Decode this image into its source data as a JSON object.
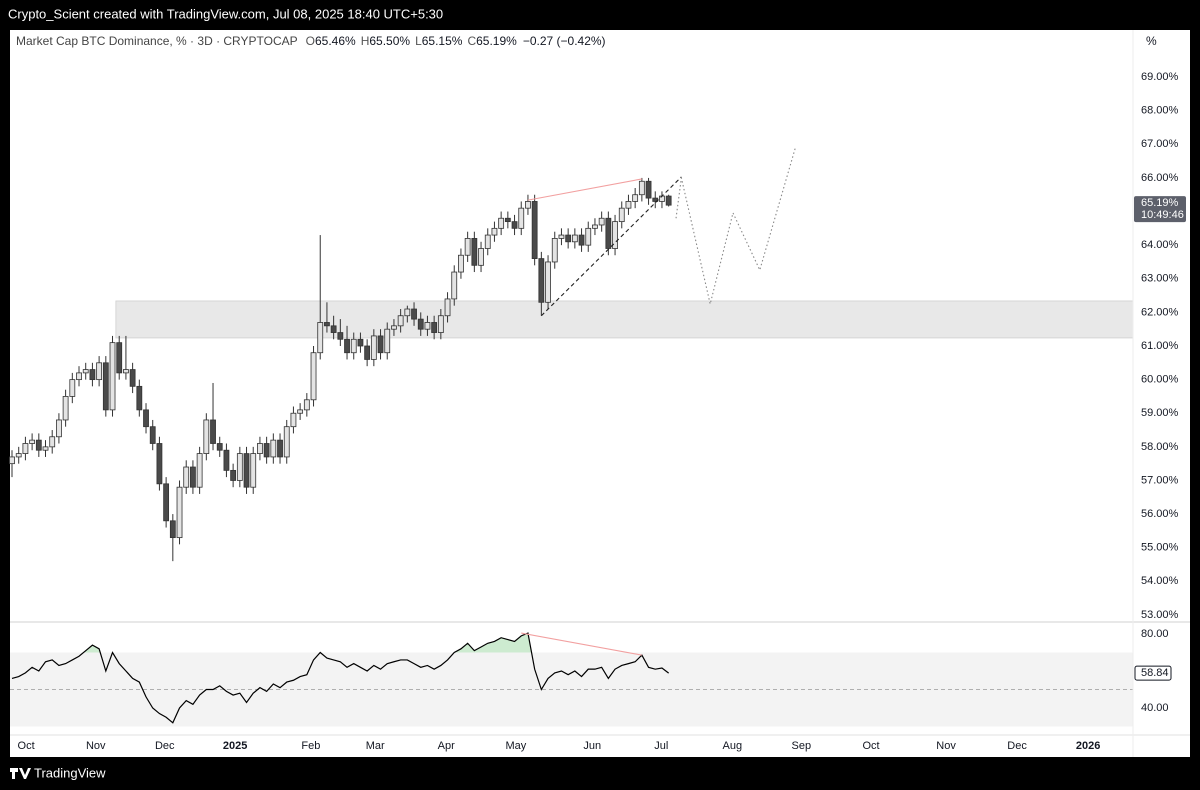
{
  "top_bar": {
    "text": "Crypto_Scient created with TradingView.com, Jul 08, 2025 18:40 UTC+5:30"
  },
  "footer": {
    "brand": "TradingView"
  },
  "chart_data": [
    {
      "type": "candlestick",
      "title": "Market Cap BTC Dominance, % · 3D · CRYPTOCAP",
      "ohlc_legend": [
        {
          "label": "O",
          "value": "65.46%"
        },
        {
          "label": "H",
          "value": "65.50%"
        },
        {
          "label": "L",
          "value": "65.15%"
        },
        {
          "label": "C",
          "value": "65.19%"
        }
      ],
      "change": "−0.27 (−0.42%)",
      "axis_unit": "%",
      "x": [
        0,
        1,
        2,
        3,
        4,
        5,
        6,
        7,
        8,
        9,
        10,
        11,
        12,
        13,
        14,
        15,
        16,
        17,
        18,
        19,
        20,
        21,
        22,
        23,
        24,
        25,
        26,
        27,
        28,
        29,
        30,
        31,
        32,
        33,
        34,
        35,
        36,
        37,
        38,
        39,
        40,
        41,
        42,
        43,
        44,
        45,
        46,
        47,
        48,
        49,
        50,
        51,
        52,
        53,
        54,
        55,
        56,
        57,
        58,
        59,
        60,
        61,
        62,
        63,
        64,
        65,
        66,
        67,
        68,
        69,
        70,
        71,
        72,
        73,
        74,
        75,
        76,
        77,
        78,
        79,
        80,
        81,
        82,
        83,
        84,
        85,
        86,
        87,
        88,
        89,
        90,
        91,
        92,
        93,
        94,
        95,
        96,
        97,
        98
      ],
      "open": [
        57.5,
        57.7,
        57.8,
        58.1,
        58.2,
        57.9,
        58.0,
        58.3,
        58.8,
        59.5,
        60.0,
        60.2,
        60.3,
        60.0,
        60.5,
        59.1,
        61.1,
        60.2,
        60.3,
        59.8,
        59.1,
        58.6,
        58.1,
        56.9,
        55.8,
        55.3,
        56.8,
        57.4,
        56.8,
        57.8,
        58.8,
        58.1,
        57.9,
        57.3,
        57.0,
        57.8,
        56.8,
        57.8,
        58.1,
        57.7,
        58.2,
        57.7,
        58.6,
        59.0,
        59.1,
        59.4,
        60.8,
        61.7,
        61.6,
        61.4,
        61.2,
        60.8,
        61.2,
        61.0,
        60.6,
        61.3,
        60.8,
        61.5,
        61.6,
        61.9,
        62.1,
        61.8,
        61.5,
        61.7,
        61.4,
        61.9,
        62.4,
        63.2,
        63.7,
        64.2,
        63.4,
        63.9,
        64.3,
        64.5,
        64.8,
        64.7,
        64.5,
        65.1,
        65.3,
        63.6,
        62.3,
        63.5,
        64.2,
        64.3,
        64.1,
        64.3,
        64.0,
        64.5,
        64.6,
        64.8,
        63.9,
        64.7,
        65.1,
        65.3,
        65.5,
        65.9,
        65.4,
        65.3,
        65.46
      ],
      "high": [
        57.9,
        58.0,
        58.3,
        58.4,
        58.4,
        58.2,
        58.5,
        59.0,
        59.7,
        60.2,
        60.4,
        60.5,
        60.5,
        60.7,
        60.7,
        61.3,
        61.3,
        61.3,
        60.5,
        60.0,
        59.3,
        58.8,
        58.3,
        57.1,
        56.0,
        57.0,
        57.6,
        57.6,
        58.0,
        59.0,
        59.9,
        58.3,
        58.1,
        57.5,
        58.0,
        58.0,
        58.0,
        58.3,
        58.3,
        58.4,
        58.4,
        58.8,
        59.2,
        59.3,
        59.6,
        61.0,
        64.3,
        62.3,
        61.9,
        61.8,
        61.6,
        61.4,
        61.4,
        61.2,
        61.5,
        61.5,
        61.7,
        61.8,
        62.1,
        62.2,
        62.3,
        62.0,
        61.9,
        61.9,
        62.1,
        62.6,
        63.4,
        63.9,
        64.4,
        64.4,
        64.1,
        64.5,
        64.7,
        65.0,
        65.0,
        64.9,
        65.3,
        65.5,
        65.5,
        63.8,
        63.7,
        64.4,
        64.5,
        64.5,
        64.5,
        64.5,
        64.7,
        64.8,
        65.0,
        65.0,
        64.9,
        65.3,
        65.5,
        65.7,
        66.0,
        66.0,
        65.6,
        65.6,
        65.5
      ],
      "low": [
        57.1,
        57.5,
        57.6,
        57.9,
        57.7,
        57.7,
        57.8,
        58.1,
        58.6,
        59.3,
        59.8,
        60.0,
        59.8,
        59.8,
        58.9,
        58.9,
        60.0,
        60.0,
        59.6,
        58.9,
        58.4,
        57.9,
        56.7,
        55.6,
        54.6,
        55.1,
        56.6,
        56.6,
        56.6,
        57.6,
        57.9,
        57.7,
        57.1,
        56.8,
        56.8,
        56.6,
        56.6,
        57.6,
        57.5,
        57.5,
        57.5,
        57.5,
        58.4,
        58.8,
        58.9,
        59.2,
        60.6,
        61.4,
        61.2,
        61.0,
        60.6,
        60.6,
        60.8,
        60.4,
        60.4,
        60.6,
        60.6,
        61.3,
        61.4,
        61.7,
        61.6,
        61.3,
        61.3,
        61.2,
        61.2,
        61.7,
        62.2,
        63.0,
        63.5,
        63.2,
        63.2,
        63.7,
        64.1,
        64.3,
        64.5,
        64.3,
        64.3,
        64.9,
        63.4,
        61.9,
        62.1,
        63.3,
        64.0,
        63.9,
        63.9,
        63.8,
        63.8,
        64.3,
        64.4,
        63.7,
        63.7,
        64.5,
        64.9,
        65.1,
        65.3,
        65.2,
        65.1,
        65.1,
        65.15
      ],
      "close": [
        57.7,
        57.8,
        58.1,
        58.2,
        57.9,
        58.0,
        58.3,
        58.8,
        59.5,
        60.0,
        60.2,
        60.3,
        60.0,
        60.5,
        59.1,
        61.1,
        60.2,
        60.3,
        59.8,
        59.1,
        58.6,
        58.1,
        56.9,
        55.8,
        55.3,
        56.8,
        57.4,
        56.8,
        57.8,
        58.8,
        58.1,
        57.9,
        57.3,
        57.0,
        57.8,
        56.8,
        57.8,
        58.1,
        57.7,
        58.2,
        57.7,
        58.6,
        59.0,
        59.1,
        59.4,
        60.8,
        61.7,
        61.6,
        61.4,
        61.2,
        60.8,
        61.2,
        61.0,
        60.6,
        61.3,
        60.8,
        61.5,
        61.6,
        61.9,
        62.1,
        61.8,
        61.5,
        61.7,
        61.4,
        61.9,
        62.4,
        63.2,
        63.7,
        64.2,
        63.4,
        63.9,
        64.3,
        64.5,
        64.8,
        64.7,
        64.5,
        65.1,
        65.3,
        63.6,
        62.3,
        63.5,
        64.2,
        64.3,
        64.1,
        64.3,
        64.0,
        64.5,
        64.6,
        64.8,
        63.9,
        64.7,
        65.1,
        65.3,
        65.5,
        65.9,
        65.4,
        65.3,
        65.46,
        65.19
      ],
      "up_color": "#e4e4e4",
      "down_color": "#4a4a4a",
      "xlim": [
        -0.3,
        167.3
      ],
      "ylim": [
        52.79,
        70.4
      ],
      "yticks": [
        {
          "value": 53,
          "label": "53.00%"
        },
        {
          "value": 54,
          "label": "54.00%"
        },
        {
          "value": 55,
          "label": "55.00%"
        },
        {
          "value": 56,
          "label": "56.00%"
        },
        {
          "value": 57,
          "label": "57.00%"
        },
        {
          "value": 58,
          "label": "58.00%"
        },
        {
          "value": 59,
          "label": "59.00%"
        },
        {
          "value": 60,
          "label": "60.00%"
        },
        {
          "value": 61,
          "label": "61.00%"
        },
        {
          "value": 62,
          "label": "62.00%"
        },
        {
          "value": 63,
          "label": "63.00%"
        },
        {
          "value": 64,
          "label": "64.00%"
        },
        {
          "value": 65,
          "label": "65.00%"
        },
        {
          "value": 66,
          "label": "66.00%"
        },
        {
          "value": 67,
          "label": "67.00%"
        },
        {
          "value": 68,
          "label": "68.00%"
        },
        {
          "value": 69,
          "label": "69.00%"
        }
      ],
      "zones": [
        {
          "x0": 15.5,
          "x1": 167.3,
          "y0": 61.24,
          "y1": 62.34,
          "color": "#e8e8e8"
        }
      ],
      "lines": [
        {
          "x": [
            77,
            94
          ],
          "y": [
            65.34,
            65.97
          ],
          "color": "#f2a0a0",
          "style": "solid"
        },
        {
          "x": [
            79,
            99.9
          ],
          "y": [
            61.9,
            66.03
          ],
          "color": "#222222",
          "style": "dashed"
        },
        {
          "x": [
            99.1,
            99.9,
            104.2,
            107.6,
            111.6,
            116.9
          ],
          "y": [
            64.8,
            66.0,
            62.25,
            64.96,
            63.26,
            66.89
          ],
          "color": "#888888",
          "style": "dotted"
        }
      ],
      "last_label": {
        "value": 65.19,
        "label": "65.19%",
        "countdown": "10:49:46"
      }
    },
    {
      "type": "line",
      "x": [
        0,
        1,
        2,
        3,
        4,
        5,
        6,
        7,
        8,
        9,
        10,
        11,
        12,
        13,
        14,
        15,
        16,
        17,
        18,
        19,
        20,
        21,
        22,
        23,
        24,
        25,
        26,
        27,
        28,
        29,
        30,
        31,
        32,
        33,
        34,
        35,
        36,
        37,
        38,
        39,
        40,
        41,
        42,
        43,
        44,
        45,
        46,
        47,
        48,
        49,
        50,
        51,
        52,
        53,
        54,
        55,
        56,
        57,
        58,
        59,
        60,
        61,
        62,
        63,
        64,
        65,
        66,
        67,
        68,
        69,
        70,
        71,
        72,
        73,
        74,
        75,
        76,
        77,
        78,
        79,
        80,
        81,
        82,
        83,
        84,
        85,
        86,
        87,
        88,
        89,
        90,
        91,
        92,
        93,
        94,
        95,
        96,
        97,
        98
      ],
      "values": [
        56,
        57,
        59,
        62,
        60,
        65,
        66,
        63,
        64,
        66,
        68,
        71,
        74,
        72,
        60,
        70,
        64,
        60,
        56,
        54,
        46,
        40,
        37,
        35,
        32,
        40,
        44,
        42,
        47,
        50,
        50,
        52,
        49,
        47,
        48,
        43,
        48,
        51,
        49,
        53,
        51,
        54,
        55,
        57,
        58,
        66,
        70,
        67,
        66,
        65,
        62,
        64,
        62,
        60,
        63,
        61,
        64,
        65,
        66,
        66,
        64,
        62,
        63,
        61,
        63,
        66,
        70,
        72,
        75,
        71,
        73,
        75,
        76,
        78,
        77,
        76,
        79,
        80.5,
        61,
        50,
        56,
        59,
        60,
        58,
        60,
        57,
        61,
        61,
        62,
        56,
        61,
        63,
        64,
        65,
        68.6,
        62,
        61,
        61.6,
        58.84
      ],
      "color": "#000000",
      "xlim": [
        -0.3,
        167.3
      ],
      "ylim": [
        25.4,
        86.5
      ],
      "yticks": [
        {
          "value": 80,
          "label": "80.00"
        },
        {
          "value": 40,
          "label": "40.00"
        }
      ],
      "xticks": [
        {
          "value": 2.1,
          "label": "Oct"
        },
        {
          "value": 12.5,
          "label": "Nov"
        },
        {
          "value": 22.8,
          "label": "Dec"
        },
        {
          "value": 33.3,
          "label": "2025"
        },
        {
          "value": 44.6,
          "label": "Feb"
        },
        {
          "value": 54.2,
          "label": "Mar"
        },
        {
          "value": 64.8,
          "label": "Apr"
        },
        {
          "value": 75.2,
          "label": "May"
        },
        {
          "value": 86.6,
          "label": "Jun"
        },
        {
          "value": 96.9,
          "label": "Jul"
        },
        {
          "value": 107.5,
          "label": "Aug"
        },
        {
          "value": 117.8,
          "label": "Sep"
        },
        {
          "value": 128.2,
          "label": "Oct"
        },
        {
          "value": 139.4,
          "label": "Nov"
        },
        {
          "value": 150.0,
          "label": "Dec"
        },
        {
          "value": 160.6,
          "label": "2026"
        }
      ],
      "band": [
        30,
        70
      ],
      "band_color": "#f3f3f3",
      "midline": 50,
      "overbought_fill": "#cdebd0",
      "lines": [
        {
          "x": [
            76,
            94
          ],
          "y": [
            80.5,
            68.6
          ],
          "color": "#f2a0a0",
          "style": "solid"
        }
      ],
      "last_label": {
        "value": 58.84,
        "label": "58.84"
      }
    }
  ]
}
